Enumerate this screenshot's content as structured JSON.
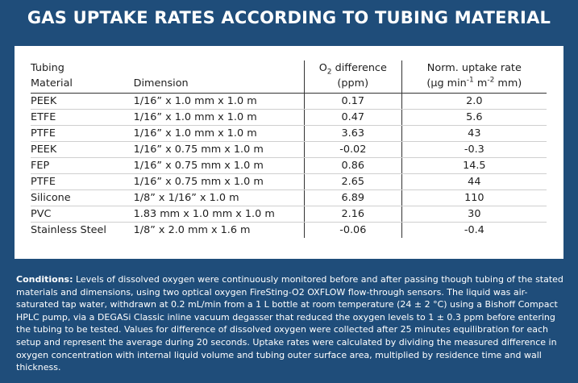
{
  "title": "GAS UPTAKE RATES ACCORDING TO TUBING MATERIAL",
  "table": {
    "headers": {
      "material_line1": "Tubing",
      "material_line2": "Material",
      "dimension": "Dimension",
      "o2_prefix": "O",
      "o2_sub": "2",
      "o2_suffix": " difference",
      "o2_unit": "(ppm)",
      "rate_line1": "Norm. uptake rate",
      "rate_unit_a": "(µg min",
      "rate_unit_sup1": "-1",
      "rate_unit_b": " m",
      "rate_unit_sup2": "-2",
      "rate_unit_c": " mm)"
    },
    "rows": [
      {
        "material": "PEEK",
        "dimension": "1/16” x 1.0 mm x 1.0 m",
        "o2": "0.17",
        "rate": "2.0"
      },
      {
        "material": "ETFE",
        "dimension": "1/16” x 1.0 mm x 1.0 m",
        "o2": "0.47",
        "rate": "5.6"
      },
      {
        "material": "PTFE",
        "dimension": "1/16” x 1.0 mm x 1.0 m",
        "o2": "3.63",
        "rate": "43"
      },
      {
        "material": "PEEK",
        "dimension": "1/16” x 0.75 mm x 1.0 m",
        "o2": "-0.02",
        "rate": "-0.3"
      },
      {
        "material": "FEP",
        "dimension": "1/16” x 0.75 mm x 1.0 m",
        "o2": "0.86",
        "rate": "14.5"
      },
      {
        "material": "PTFE",
        "dimension": "1/16” x 0.75 mm x 1.0 m",
        "o2": "2.65",
        "rate": "44"
      },
      {
        "material": "Silicone",
        "dimension": "1/8” x 1/16” x 1.0 m",
        "o2": "6.89",
        "rate": "110"
      },
      {
        "material": "PVC",
        "dimension": "1.83 mm x 1.0 mm x 1.0 m",
        "o2": "2.16",
        "rate": "30"
      },
      {
        "material": "Stainless Steel",
        "dimension": "1/8” x 2.0 mm x 1.6 m",
        "o2": "-0.06",
        "rate": "-0.4"
      }
    ]
  },
  "conditions": {
    "label": "Conditions:",
    "text": " Levels of dissolved oxygen were continuously monitored before and after passing though tubing of the stated materials and dimensions, using two optical oxygen FireSting-O2 OXFLOW flow-through sensors. The liquid was air-saturated tap water, withdrawn at 0.2 mL/min from a 1 L bottle at room temperature (24 ± 2 °C) using a Bishoff Compact HPLC pump, via a DEGASi Classic inline vacuum degasser that reduced the oxygen levels to 1 ± 0.3 ppm before entering the tubing to be tested. Values for difference of dissolved oxygen were collected after 25 minutes equilibration for each setup and represent the average during 20 seconds. Uptake rates were calculated by dividing the measured difference in oxygen concentration with internal liquid volume and tubing outer surface area, multiplied by residence time and wall thickness."
  }
}
